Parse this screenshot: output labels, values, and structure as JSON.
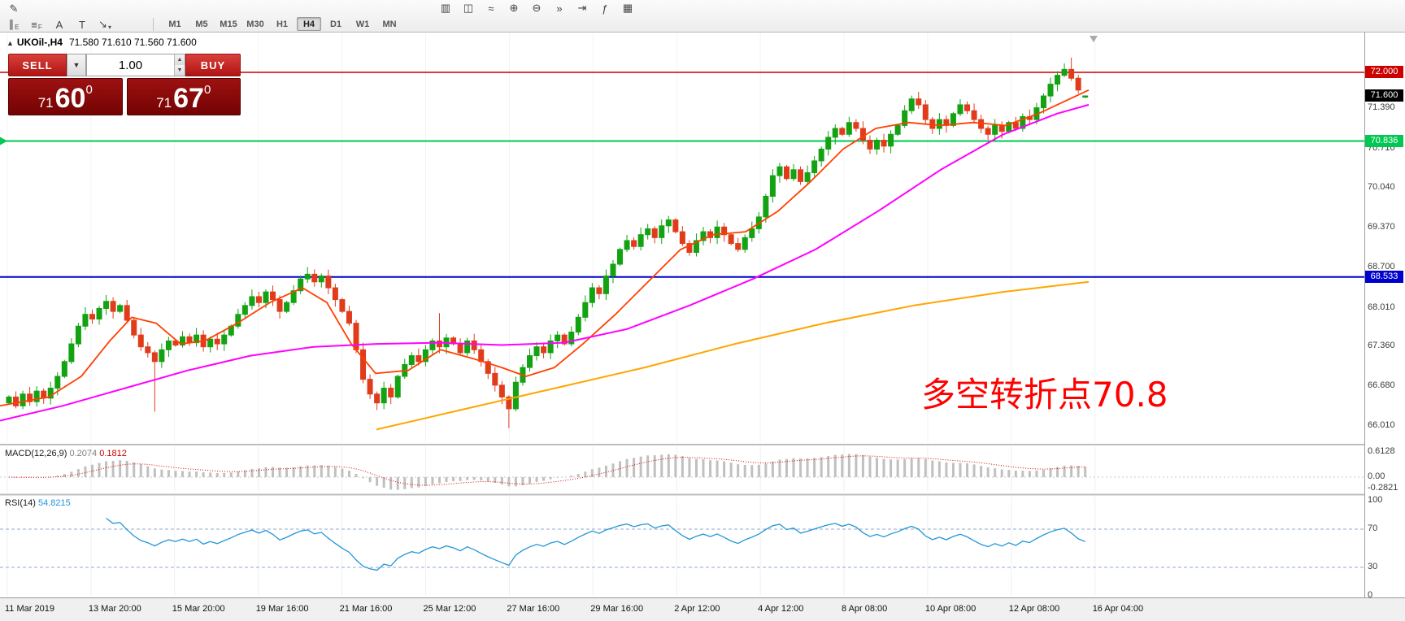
{
  "toolbar": {
    "row1_left_icons": [
      {
        "name": "pencil-icon",
        "glyph": "✎"
      }
    ],
    "row1_icons": [
      {
        "name": "bar-chart-icon",
        "glyph": "▥"
      },
      {
        "name": "candlestick-chart-icon",
        "glyph": "◫"
      },
      {
        "name": "line-chart-icon",
        "glyph": "≈"
      },
      {
        "name": "zoom-in-icon",
        "glyph": "⊕"
      },
      {
        "name": "zoom-out-icon",
        "glyph": "⊖"
      },
      {
        "name": "auto-scroll-icon",
        "glyph": "»"
      },
      {
        "name": "chart-shift-icon",
        "glyph": "⇥"
      },
      {
        "name": "indicators-icon",
        "glyph": "ƒ"
      },
      {
        "name": "templates-icon",
        "glyph": "▦"
      }
    ],
    "drawing_tools": [
      {
        "name": "equidistant-channel-icon",
        "glyph": "∥",
        "sub": "E"
      },
      {
        "name": "fibonacci-retracement-icon",
        "glyph": "≡",
        "sub": "F"
      },
      {
        "name": "text-icon",
        "glyph": "A",
        "sub": ""
      },
      {
        "name": "text-label-icon",
        "glyph": "T",
        "sub": ""
      },
      {
        "name": "arrow-tools-icon",
        "glyph": "↘",
        "sub": "▾"
      }
    ],
    "timeframes": [
      {
        "label": "M1",
        "active": false
      },
      {
        "label": "M5",
        "active": false
      },
      {
        "label": "M15",
        "active": false
      },
      {
        "label": "M30",
        "active": false
      },
      {
        "label": "H1",
        "active": false
      },
      {
        "label": "H4",
        "active": true
      },
      {
        "label": "D1",
        "active": false
      },
      {
        "label": "W1",
        "active": false
      },
      {
        "label": "MN",
        "active": false
      }
    ]
  },
  "quote": {
    "collapse_arrow": "▲",
    "symbol": "UKOil-,H4",
    "ohlc": "71.580 71.610 71.560 71.600"
  },
  "trade_panel": {
    "sell_label": "SELL",
    "buy_label": "BUY",
    "volume": "1.00",
    "sell_price": {
      "prefix": "71",
      "big": "60",
      "sup": "0"
    },
    "buy_price": {
      "prefix": "71",
      "big": "67",
      "sup": "0"
    }
  },
  "chart_data": {
    "type": "candlestick",
    "symbol": "UKOil-",
    "timeframe": "H4",
    "last_quote": {
      "open": 71.58,
      "high": 71.61,
      "low": 71.56,
      "close": 71.6
    },
    "first_open": 66.4,
    "closes": [
      66.5,
      66.35,
      66.55,
      66.42,
      66.6,
      66.48,
      66.65,
      66.85,
      67.1,
      67.4,
      67.7,
      67.9,
      67.82,
      68.0,
      68.12,
      67.95,
      68.05,
      67.8,
      67.55,
      67.35,
      67.25,
      67.1,
      67.3,
      67.45,
      67.38,
      67.52,
      67.42,
      67.55,
      67.35,
      67.48,
      67.4,
      67.55,
      67.7,
      67.9,
      68.05,
      68.2,
      68.1,
      68.28,
      68.15,
      67.95,
      68.1,
      68.3,
      68.5,
      68.58,
      68.45,
      68.55,
      68.35,
      68.15,
      67.95,
      67.75,
      67.3,
      66.8,
      66.55,
      66.4,
      66.65,
      66.5,
      66.85,
      67.05,
      67.2,
      67.1,
      67.3,
      67.45,
      67.35,
      67.5,
      67.4,
      67.25,
      67.45,
      67.3,
      67.1,
      66.9,
      66.7,
      66.5,
      66.3,
      66.75,
      67.0,
      67.2,
      67.35,
      67.25,
      67.45,
      67.55,
      67.4,
      67.6,
      67.85,
      68.1,
      68.35,
      68.25,
      68.55,
      68.75,
      69.0,
      69.15,
      69.05,
      69.25,
      69.35,
      69.2,
      69.4,
      69.5,
      69.3,
      69.1,
      68.95,
      69.15,
      69.3,
      69.2,
      69.38,
      69.25,
      69.1,
      69.0,
      69.2,
      69.35,
      69.55,
      69.9,
      70.25,
      70.4,
      70.2,
      70.35,
      70.15,
      70.3,
      70.5,
      70.7,
      70.9,
      71.05,
      70.95,
      71.15,
      71.05,
      70.85,
      70.7,
      70.85,
      70.75,
      70.95,
      71.1,
      71.35,
      71.55,
      71.45,
      71.2,
      71.05,
      71.2,
      71.1,
      71.3,
      71.45,
      71.35,
      71.2,
      71.05,
      70.95,
      71.1,
      71.0,
      71.15,
      71.05,
      71.25,
      71.2,
      71.4,
      71.6,
      71.8,
      71.95,
      72.05,
      71.9,
      71.7,
      71.6
    ],
    "wick_overrides": {
      "21": {
        "low": 66.25
      },
      "53": {
        "low": 66.28
      },
      "62": {
        "high": 67.92
      },
      "72": {
        "low": 65.97
      },
      "152": {
        "high": 72.15
      },
      "153": {
        "high": 72.25
      },
      "155": {
        "open": 71.58,
        "high": 71.61,
        "low": 71.56
      }
    },
    "horizontal_lines": [
      {
        "price": 72.0,
        "label": "72.000",
        "color": "#cc0000",
        "width": 1.5
      },
      {
        "price": 70.836,
        "label": "70.836",
        "color": "#00c853",
        "width": 2
      },
      {
        "price": 68.533,
        "label": "68.533",
        "color": "#0000cc",
        "width": 2
      }
    ],
    "current_price": {
      "value": 71.6,
      "label": "71.600",
      "badge_color": "#000000"
    },
    "y_axis_ticks": [
      "71.390",
      "70.710",
      "70.040",
      "69.370",
      "68.700",
      "68.010",
      "67.360",
      "66.680",
      "66.010"
    ],
    "x_axis_labels": [
      "11 Mar 2019",
      "13 Mar 20:00",
      "15 Mar 20:00",
      "19 Mar 16:00",
      "21 Mar 16:00",
      "25 Mar 12:00",
      "27 Mar 16:00",
      "29 Mar 16:00",
      "2 Apr 12:00",
      "4 Apr 12:00",
      "8 Apr 08:00",
      "10 Apr 08:00",
      "12 Apr 08:00",
      "16 Apr 04:00"
    ],
    "moving_averages": [
      {
        "name": "fast-ma",
        "color": "#ff4000",
        "width": 1.8,
        "points": [
          [
            0,
            66.35
          ],
          [
            60,
            66.5
          ],
          [
            100,
            66.85
          ],
          [
            135,
            67.45
          ],
          [
            162,
            67.85
          ],
          [
            192,
            67.75
          ],
          [
            222,
            67.4
          ],
          [
            252,
            67.45
          ],
          [
            292,
            67.75
          ],
          [
            332,
            68.1
          ],
          [
            372,
            68.35
          ],
          [
            402,
            68.1
          ],
          [
            432,
            67.4
          ],
          [
            462,
            66.9
          ],
          [
            502,
            66.95
          ],
          [
            542,
            67.3
          ],
          [
            582,
            67.15
          ],
          [
            617,
            67.0
          ],
          [
            647,
            66.85
          ],
          [
            682,
            67.0
          ],
          [
            717,
            67.4
          ],
          [
            757,
            67.9
          ],
          [
            797,
            68.45
          ],
          [
            837,
            69.0
          ],
          [
            877,
            69.25
          ],
          [
            917,
            69.3
          ],
          [
            957,
            69.65
          ],
          [
            997,
            70.15
          ],
          [
            1037,
            70.7
          ],
          [
            1077,
            71.05
          ],
          [
            1117,
            71.15
          ],
          [
            1157,
            71.1
          ],
          [
            1197,
            71.15
          ],
          [
            1237,
            71.1
          ],
          [
            1277,
            71.3
          ],
          [
            1339,
            71.7
          ]
        ]
      },
      {
        "name": "medium-ma",
        "color": "#ff00ff",
        "width": 2,
        "points": [
          [
            0,
            66.1
          ],
          [
            77,
            66.35
          ],
          [
            154,
            66.65
          ],
          [
            231,
            66.95
          ],
          [
            308,
            67.2
          ],
          [
            386,
            67.35
          ],
          [
            463,
            67.4
          ],
          [
            540,
            67.42
          ],
          [
            617,
            67.38
          ],
          [
            694,
            67.42
          ],
          [
            771,
            67.65
          ],
          [
            848,
            68.05
          ],
          [
            926,
            68.5
          ],
          [
            1003,
            69.0
          ],
          [
            1080,
            69.65
          ],
          [
            1157,
            70.35
          ],
          [
            1234,
            70.95
          ],
          [
            1300,
            71.3
          ],
          [
            1339,
            71.45
          ]
        ]
      },
      {
        "name": "slow-ma",
        "color": "#ffa500",
        "width": 2,
        "points": [
          [
            463,
            65.95
          ],
          [
            573,
            66.3
          ],
          [
            683,
            66.65
          ],
          [
            793,
            67.0
          ],
          [
            904,
            67.4
          ],
          [
            1014,
            67.75
          ],
          [
            1124,
            68.05
          ],
          [
            1234,
            68.28
          ],
          [
            1339,
            68.45
          ]
        ]
      }
    ],
    "colors": {
      "candle_up": "#12a212",
      "candle_down": "#e03c1c",
      "macd_histogram": "#c0c0c0",
      "macd_signal": "#e00000",
      "rsi_line": "#2196d9"
    },
    "indicators": {
      "macd": {
        "label": "MACD(12,26,9)",
        "main_value": "0.2074",
        "signal_value": "0.1812",
        "params": [
          12,
          26,
          9
        ],
        "axis": [
          "0.6128",
          "0.00",
          "-0.2821"
        ]
      },
      "rsi": {
        "label": "RSI(14)",
        "value": "54.8215",
        "period": 14,
        "levels": [
          70,
          30
        ],
        "axis": [
          "100",
          "70",
          "30",
          "0"
        ]
      }
    },
    "annotation": {
      "text": "多空转折点70.8",
      "color": "#ff0000"
    }
  }
}
